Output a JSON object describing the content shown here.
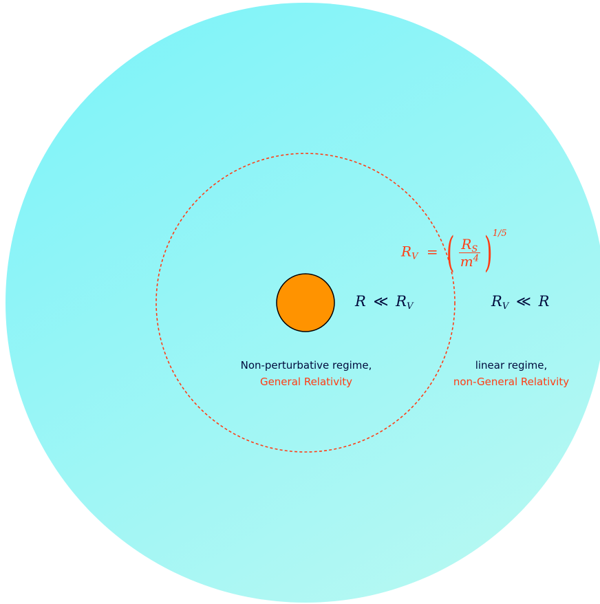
{
  "regions": {
    "outer_color_top": "#7ff3f9",
    "outer_color_bottom": "#b7f8f2",
    "boundary_color": "#ff3c14",
    "source_color": "#ff9300"
  },
  "inner": {
    "condition": {
      "lhs": "R",
      "operator": "≪",
      "rhs": "R",
      "rhs_sub": "V"
    },
    "label_line1": "Non-perturbative regime,",
    "label_line2": "General Relativity"
  },
  "outer": {
    "condition": {
      "lhs": "R",
      "lhs_sub": "V",
      "operator": "≪",
      "rhs": "R"
    },
    "label_line1": "linear regime,",
    "label_line2": "non-General Relativity"
  },
  "vainshtein_radius": {
    "lhs": "R",
    "lhs_sub": "V",
    "equals": "=",
    "numerator": "R",
    "numerator_sub": "S",
    "denominator": "m",
    "denominator_sup": "4",
    "paren_open": "(",
    "paren_close": ")",
    "exponent": "1/5"
  }
}
